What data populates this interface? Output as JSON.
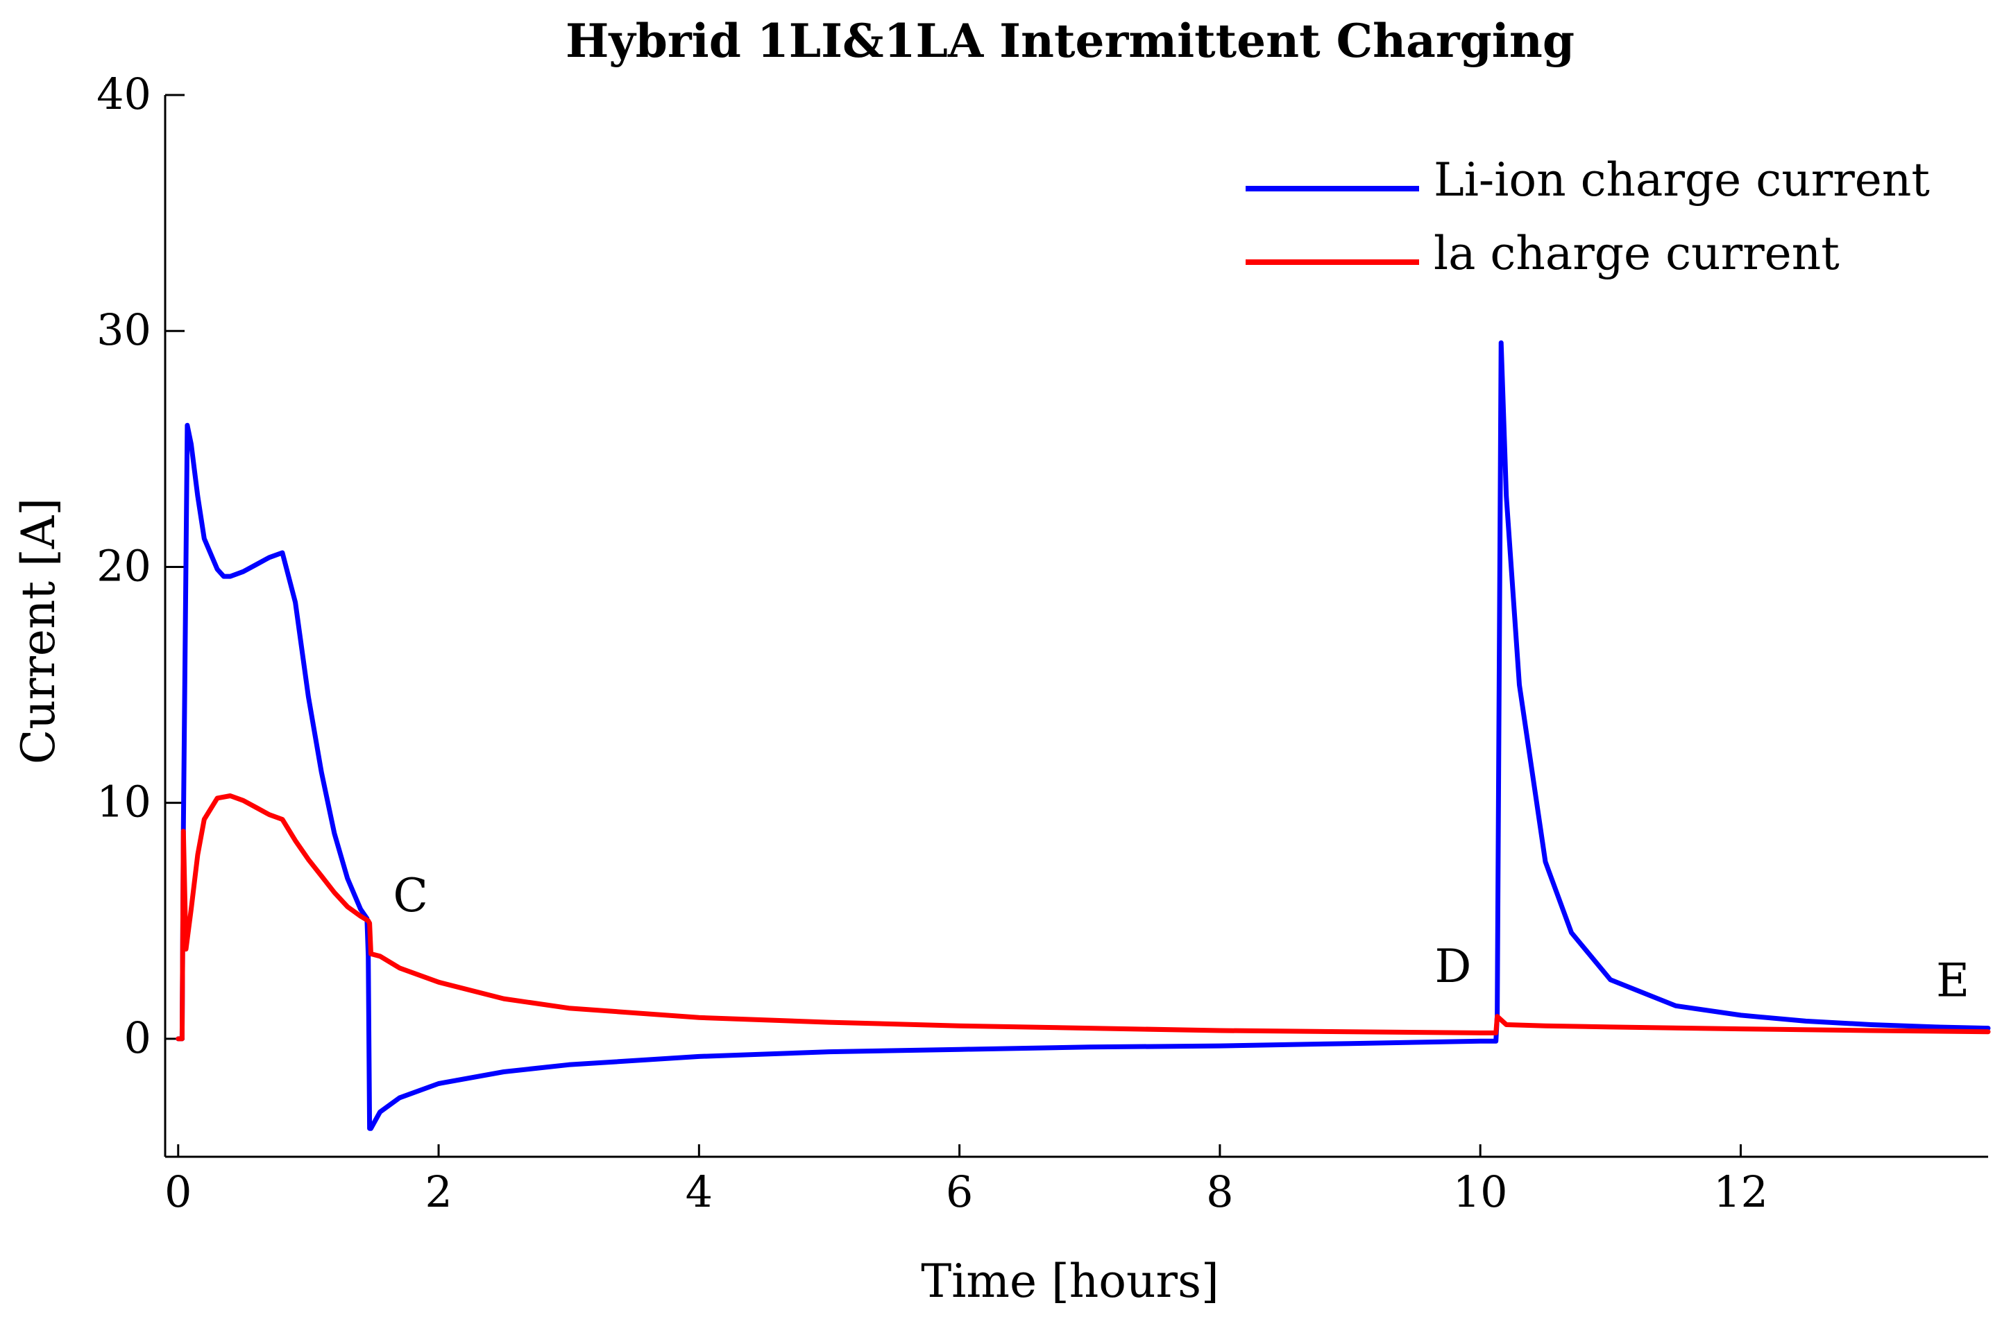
{
  "chart_data": {
    "type": "line",
    "title": "Hybrid 1LI&1LA Intermittent Charging",
    "xlabel": "Time [hours]",
    "ylabel": "Current [A]",
    "xlim": [
      -0.1,
      13.9
    ],
    "ylim": [
      -5,
      40
    ],
    "xticks": [
      0,
      2,
      4,
      6,
      8,
      10,
      12
    ],
    "xtick_labels": [
      "0",
      "2",
      "4",
      "6",
      "8",
      "10",
      "12"
    ],
    "yticks": [
      0,
      10,
      20,
      30,
      40
    ],
    "ytick_labels": [
      "0",
      "10",
      "20",
      "30",
      "40"
    ],
    "grid": false,
    "legend_position": "top-right",
    "series": [
      {
        "name": "Li-ion charge current",
        "color": "#0000ff",
        "x": [
          0.0,
          0.03,
          0.04,
          0.07,
          0.1,
          0.15,
          0.2,
          0.3,
          0.35,
          0.4,
          0.5,
          0.6,
          0.7,
          0.8,
          0.9,
          1.0,
          1.1,
          1.2,
          1.3,
          1.4,
          1.45,
          1.46,
          1.47,
          1.48,
          1.55,
          1.7,
          2.0,
          2.5,
          3.0,
          4.0,
          5.0,
          6.0,
          7.0,
          8.0,
          9.0,
          10.0,
          10.12,
          10.13,
          10.16,
          10.2,
          10.3,
          10.5,
          10.7,
          11.0,
          11.5,
          12.0,
          12.5,
          13.0,
          13.5,
          13.9
        ],
        "y": [
          0,
          0,
          9,
          26,
          25.2,
          23,
          21.2,
          19.9,
          19.6,
          19.6,
          19.8,
          20.1,
          20.4,
          20.6,
          18.5,
          14.5,
          11.3,
          8.7,
          6.8,
          5.5,
          5.1,
          3.5,
          -3.8,
          -3.8,
          -3.1,
          -2.5,
          -1.9,
          -1.4,
          -1.1,
          -0.75,
          -0.55,
          -0.45,
          -0.35,
          -0.3,
          -0.2,
          -0.1,
          -0.1,
          1,
          29.5,
          23,
          15,
          7.5,
          4.5,
          2.5,
          1.4,
          1.0,
          0.75,
          0.6,
          0.5,
          0.45
        ]
      },
      {
        "name": "la charge current",
        "color": "#ff0000",
        "x": [
          0.0,
          0.03,
          0.04,
          0.06,
          0.1,
          0.15,
          0.2,
          0.3,
          0.4,
          0.5,
          0.6,
          0.7,
          0.8,
          0.9,
          1.0,
          1.1,
          1.2,
          1.3,
          1.4,
          1.46,
          1.47,
          1.48,
          1.55,
          1.7,
          2.0,
          2.5,
          3.0,
          4.0,
          5.0,
          6.0,
          7.0,
          8.0,
          9.0,
          10.0,
          10.12,
          10.13,
          10.2,
          10.5,
          11.0,
          12.0,
          13.0,
          13.9
        ],
        "y": [
          0,
          0,
          8.8,
          3.8,
          5.5,
          7.8,
          9.3,
          10.2,
          10.3,
          10.1,
          9.8,
          9.5,
          9.3,
          8.4,
          7.6,
          6.9,
          6.2,
          5.6,
          5.2,
          5.0,
          4.9,
          3.6,
          3.5,
          3.0,
          2.4,
          1.7,
          1.3,
          0.9,
          0.7,
          0.55,
          0.45,
          0.35,
          0.3,
          0.25,
          0.25,
          0.95,
          0.6,
          0.55,
          0.5,
          0.42,
          0.35,
          0.3
        ]
      }
    ],
    "annotations": [
      {
        "text": "C",
        "x": 1.65,
        "y": 5.4
      },
      {
        "text": "D",
        "x": 9.65,
        "y": 2.4
      },
      {
        "text": "E",
        "x": 13.5,
        "y": 1.8
      }
    ]
  }
}
